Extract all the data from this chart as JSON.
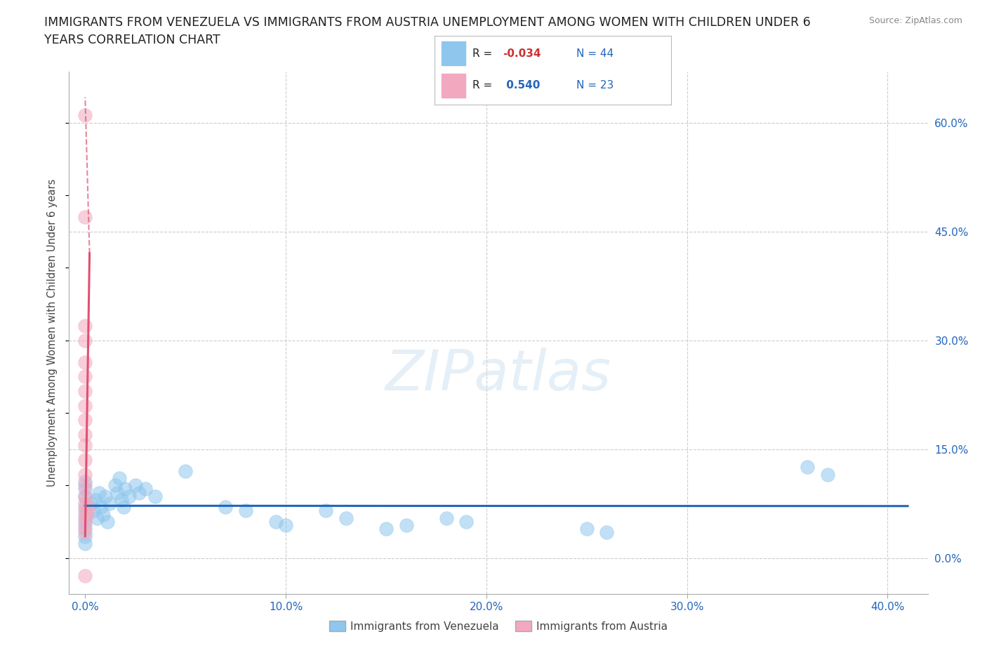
{
  "title_line1": "IMMIGRANTS FROM VENEZUELA VS IMMIGRANTS FROM AUSTRIA UNEMPLOYMENT AMONG WOMEN WITH CHILDREN UNDER 6",
  "title_line2": "YEARS CORRELATION CHART",
  "source": "Source: ZipAtlas.com",
  "ylabel": "Unemployment Among Women with Children Under 6 years",
  "xlabel_ticks": [
    "0.0%",
    "10.0%",
    "20.0%",
    "30.0%",
    "40.0%"
  ],
  "xlabel_vals": [
    0.0,
    10.0,
    20.0,
    30.0,
    40.0
  ],
  "ylabel_ticks": [
    "0.0%",
    "15.0%",
    "30.0%",
    "45.0%",
    "60.0%"
  ],
  "ylabel_vals": [
    0.0,
    15.0,
    30.0,
    45.0,
    60.0
  ],
  "xlim": [
    -0.8,
    42.0
  ],
  "ylim": [
    -5.0,
    67.0
  ],
  "watermark": "ZIPatlas",
  "legend_blue_label": "Immigrants from Venezuela",
  "legend_pink_label": "Immigrants from Austria",
  "blue_color": "#8ec6ed",
  "pink_color": "#f2a8be",
  "blue_line_color": "#2266bb",
  "pink_line_color": "#e05070",
  "background_color": "#ffffff",
  "grid_color": "#cccccc",
  "blue_scatter": [
    [
      0.0,
      8.5
    ],
    [
      0.0,
      7.0
    ],
    [
      0.0,
      6.0
    ],
    [
      0.0,
      5.0
    ],
    [
      0.0,
      4.0
    ],
    [
      0.0,
      9.5
    ],
    [
      0.0,
      10.5
    ],
    [
      0.0,
      3.0
    ],
    [
      0.0,
      2.0
    ],
    [
      0.3,
      7.5
    ],
    [
      0.4,
      6.5
    ],
    [
      0.5,
      8.0
    ],
    [
      0.6,
      5.5
    ],
    [
      0.7,
      9.0
    ],
    [
      0.8,
      7.0
    ],
    [
      0.9,
      6.0
    ],
    [
      1.0,
      8.5
    ],
    [
      1.1,
      5.0
    ],
    [
      1.2,
      7.5
    ],
    [
      1.5,
      10.0
    ],
    [
      1.6,
      9.0
    ],
    [
      1.7,
      11.0
    ],
    [
      1.8,
      8.0
    ],
    [
      1.9,
      7.0
    ],
    [
      2.0,
      9.5
    ],
    [
      2.2,
      8.5
    ],
    [
      2.5,
      10.0
    ],
    [
      2.7,
      9.0
    ],
    [
      3.0,
      9.5
    ],
    [
      3.5,
      8.5
    ],
    [
      5.0,
      12.0
    ],
    [
      7.0,
      7.0
    ],
    [
      8.0,
      6.5
    ],
    [
      9.5,
      5.0
    ],
    [
      10.0,
      4.5
    ],
    [
      12.0,
      6.5
    ],
    [
      13.0,
      5.5
    ],
    [
      15.0,
      4.0
    ],
    [
      16.0,
      4.5
    ],
    [
      18.0,
      5.5
    ],
    [
      19.0,
      5.0
    ],
    [
      25.0,
      4.0
    ],
    [
      26.0,
      3.5
    ],
    [
      36.0,
      12.5
    ],
    [
      37.0,
      11.5
    ]
  ],
  "pink_scatter": [
    [
      0.0,
      61.0
    ],
    [
      0.0,
      47.0
    ],
    [
      0.0,
      32.0
    ],
    [
      0.0,
      30.0
    ],
    [
      0.0,
      27.0
    ],
    [
      0.0,
      25.0
    ],
    [
      0.0,
      23.0
    ],
    [
      0.0,
      21.0
    ],
    [
      0.0,
      19.0
    ],
    [
      0.0,
      17.0
    ],
    [
      0.0,
      15.5
    ],
    [
      0.0,
      13.5
    ],
    [
      0.0,
      11.5
    ],
    [
      0.0,
      10.0
    ],
    [
      0.0,
      8.5
    ],
    [
      0.0,
      7.5
    ],
    [
      0.0,
      6.5
    ],
    [
      0.0,
      5.5
    ],
    [
      0.0,
      4.5
    ],
    [
      0.0,
      3.5
    ],
    [
      0.0,
      -2.5
    ],
    [
      0.1,
      6.0
    ],
    [
      0.15,
      7.0
    ]
  ],
  "pink_line_x1": 0.0,
  "pink_line_y1": 3.0,
  "pink_line_x2": 0.22,
  "pink_line_y2": 42.0,
  "pink_dash_x1": 0.0,
  "pink_dash_y1": 63.5,
  "pink_dash_x2": 0.22,
  "pink_dash_y2": 42.0
}
